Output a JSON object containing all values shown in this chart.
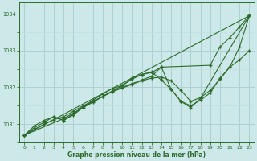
{
  "xlabel": "Graphe pression niveau de la mer (hPa)",
  "background_color": "#cce8e8",
  "grid_color_major": "#aacccc",
  "grid_color_minor": "#c0e0e0",
  "line_color": "#2d6b2d",
  "xlim": [
    -0.5,
    23.5
  ],
  "ylim": [
    1030.5,
    1034.3
  ],
  "yticks": [
    1031,
    1032,
    1033,
    1034
  ],
  "xticks": [
    0,
    1,
    2,
    3,
    4,
    5,
    6,
    7,
    8,
    9,
    10,
    11,
    12,
    13,
    14,
    15,
    16,
    17,
    18,
    19,
    20,
    21,
    22,
    23
  ],
  "line_straight": {
    "x": [
      0,
      23
    ],
    "y": [
      1030.7,
      1033.95
    ]
  },
  "line_upper": {
    "x": [
      0,
      4,
      10,
      11,
      12,
      13,
      14,
      19,
      20,
      21,
      22,
      23
    ],
    "y": [
      1030.7,
      1031.15,
      1032.05,
      1032.25,
      1032.35,
      1032.4,
      1032.55,
      1032.6,
      1033.1,
      1033.35,
      1033.65,
      1033.95
    ]
  },
  "line_mid": {
    "x": [
      0,
      1,
      2,
      3,
      4,
      5,
      6,
      7,
      8,
      9,
      10,
      11,
      12,
      13,
      14,
      15,
      16,
      17,
      18,
      19,
      20,
      21,
      22,
      23
    ],
    "y": [
      1030.7,
      1030.95,
      1031.1,
      1031.2,
      1031.1,
      1031.28,
      1031.48,
      1031.65,
      1031.82,
      1031.97,
      1032.05,
      1032.22,
      1032.35,
      1032.42,
      1032.2,
      1031.95,
      1031.62,
      1031.5,
      1031.65,
      1031.85,
      1032.25,
      1032.55,
      1032.75,
      1033.0
    ]
  },
  "line_low": {
    "x": [
      0,
      1,
      2,
      3,
      4,
      5,
      6,
      7,
      8,
      9,
      10,
      11,
      12,
      13,
      14,
      15,
      16,
      17,
      18,
      23
    ],
    "y": [
      1030.7,
      1030.9,
      1031.05,
      1031.2,
      1031.1,
      1031.25,
      1031.45,
      1031.6,
      1031.75,
      1031.9,
      1032.0,
      1032.1,
      1032.2,
      1032.3,
      1032.55,
      1031.95,
      1031.62,
      1031.45,
      1031.7,
      1033.95
    ]
  },
  "line_bottom": {
    "x": [
      0,
      1,
      2,
      3,
      4,
      5,
      6,
      7,
      8,
      9,
      10,
      11,
      12,
      13,
      14,
      15,
      16,
      17,
      18,
      19,
      20,
      21,
      22,
      23
    ],
    "y": [
      1030.7,
      1030.85,
      1031.0,
      1031.12,
      1031.2,
      1031.35,
      1031.5,
      1031.62,
      1031.75,
      1031.88,
      1031.98,
      1032.08,
      1032.18,
      1032.25,
      1032.28,
      1032.18,
      1031.92,
      1031.62,
      1031.72,
      1031.92,
      1032.22,
      1032.55,
      1033.1,
      1033.95
    ]
  }
}
